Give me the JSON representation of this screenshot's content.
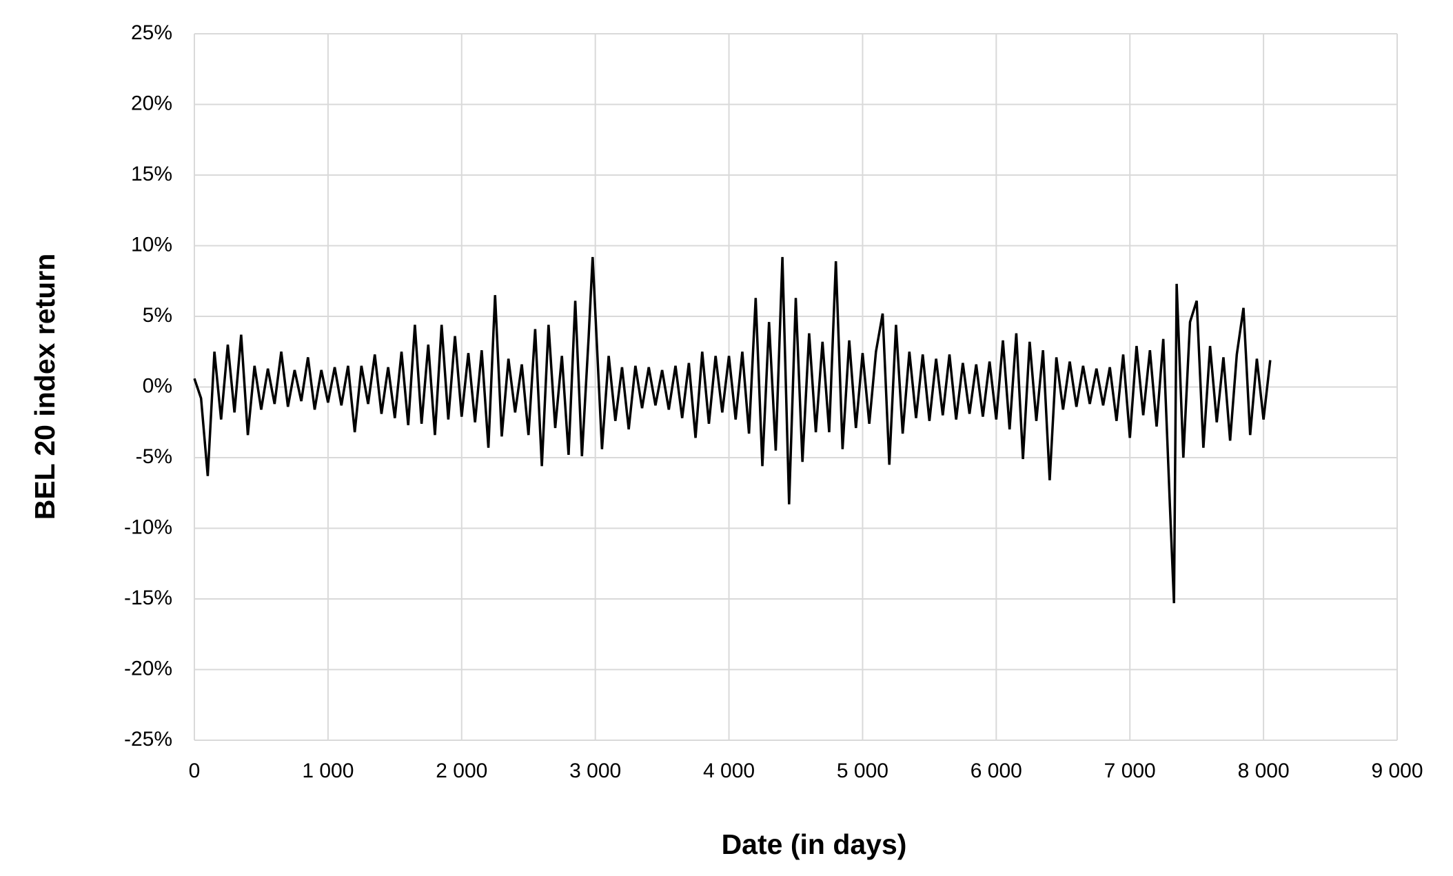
{
  "chart_data": {
    "type": "line",
    "x_label": "Date (in days)",
    "y_label": "BEL 20 index return",
    "xlim": [
      0,
      9000
    ],
    "xticks": [
      0,
      {
        "value": 1000,
        "label": "1 000"
      },
      {
        "value": 2000,
        "label": "2 000"
      },
      {
        "value": 3000,
        "label": "3 000"
      },
      {
        "value": 4000,
        "label": "4 000"
      },
      {
        "value": 5000,
        "label": "5 000"
      },
      {
        "value": 6000,
        "label": "6 000"
      },
      {
        "value": 7000,
        "label": "7 000"
      },
      {
        "value": 8000,
        "label": "8 000"
      },
      {
        "value": 9000,
        "label": "9 000"
      }
    ],
    "ylim": [
      -25,
      25
    ],
    "yticks": [
      {
        "value": -25,
        "label": "-25%"
      },
      {
        "value": -20,
        "label": "-20%"
      },
      {
        "value": -15,
        "label": "-15%"
      },
      {
        "value": -10,
        "label": "-10%"
      },
      {
        "value": -5,
        "label": "-5%"
      },
      {
        "value": 0,
        "label": "0%"
      },
      {
        "value": 5,
        "label": "5%"
      },
      {
        "value": 10,
        "label": "10%"
      },
      {
        "value": 15,
        "label": "15%"
      },
      {
        "value": 20,
        "label": "20%"
      },
      {
        "value": 25,
        "label": "25%"
      }
    ],
    "grid": true,
    "x": [
      0,
      50,
      100,
      150,
      200,
      250,
      300,
      350,
      400,
      450,
      500,
      550,
      600,
      650,
      700,
      750,
      800,
      850,
      900,
      950,
      1000,
      1050,
      1100,
      1150,
      1200,
      1250,
      1300,
      1350,
      1400,
      1450,
      1500,
      1550,
      1600,
      1650,
      1700,
      1750,
      1800,
      1850,
      1900,
      1950,
      2000,
      2050,
      2100,
      2150,
      2200,
      2250,
      2300,
      2350,
      2400,
      2450,
      2500,
      2550,
      2600,
      2650,
      2700,
      2750,
      2800,
      2850,
      2900,
      2950,
      2980,
      3050,
      3100,
      3150,
      3200,
      3250,
      3300,
      3350,
      3400,
      3450,
      3500,
      3550,
      3600,
      3650,
      3700,
      3750,
      3800,
      3850,
      3900,
      3950,
      4000,
      4050,
      4100,
      4150,
      4200,
      4250,
      4300,
      4350,
      4400,
      4450,
      4500,
      4550,
      4600,
      4650,
      4700,
      4750,
      4800,
      4850,
      4900,
      4950,
      5000,
      5050,
      5100,
      5150,
      5200,
      5250,
      5300,
      5350,
      5400,
      5450,
      5500,
      5550,
      5600,
      5650,
      5700,
      5750,
      5800,
      5850,
      5900,
      5950,
      6000,
      6050,
      6100,
      6150,
      6200,
      6250,
      6300,
      6350,
      6400,
      6450,
      6500,
      6550,
      6600,
      6650,
      6700,
      6750,
      6800,
      6850,
      6900,
      6950,
      7000,
      7050,
      7100,
      7150,
      7200,
      7250,
      7300,
      7330,
      7350,
      7400,
      7450,
      7500,
      7550,
      7600,
      7650,
      7700,
      7750,
      7800,
      7850,
      7900,
      7950,
      8000,
      8050
    ],
    "series": [
      {
        "name": "BEL 20 index return",
        "color": "#000000",
        "values": [
          0.6,
          -0.8,
          -6.3,
          2.5,
          -2.3,
          3.0,
          -1.8,
          3.7,
          -3.4,
          1.5,
          -1.6,
          1.3,
          -1.2,
          2.5,
          -1.4,
          1.2,
          -1.0,
          2.1,
          -1.6,
          1.2,
          -1.1,
          1.4,
          -1.3,
          1.5,
          -3.2,
          1.5,
          -1.2,
          2.3,
          -1.9,
          1.4,
          -2.2,
          2.5,
          -2.7,
          4.4,
          -2.6,
          3.0,
          -3.4,
          4.4,
          -2.3,
          3.6,
          -2.1,
          2.4,
          -2.5,
          2.6,
          -4.3,
          6.5,
          -3.5,
          2.0,
          -1.8,
          1.6,
          -3.4,
          4.1,
          -5.6,
          4.4,
          -2.9,
          2.2,
          -4.8,
          6.1,
          -4.9,
          3.5,
          9.2,
          -4.4,
          2.2,
          -2.4,
          1.4,
          -3.0,
          1.5,
          -1.5,
          1.4,
          -1.3,
          1.2,
          -1.6,
          1.5,
          -2.2,
          1.7,
          -3.6,
          2.5,
          -2.6,
          2.2,
          -1.8,
          2.2,
          -2.3,
          2.5,
          -3.3,
          6.3,
          -5.6,
          4.6,
          -4.5,
          9.2,
          -8.3,
          6.3,
          -5.3,
          3.8,
          -3.2,
          3.2,
          -3.2,
          8.9,
          -4.4,
          3.3,
          -2.9,
          2.4,
          -2.6,
          2.5,
          5.2,
          -5.5,
          4.4,
          -3.3,
          2.5,
          -2.2,
          2.3,
          -2.4,
          2.0,
          -2.0,
          2.3,
          -2.3,
          1.7,
          -1.9,
          1.6,
          -2.1,
          1.8,
          -2.3,
          3.3,
          -3.0,
          3.8,
          -5.1,
          3.2,
          -2.4,
          2.6,
          -6.6,
          2.1,
          -1.6,
          1.8,
          -1.4,
          1.5,
          -1.2,
          1.3,
          -1.3,
          1.4,
          -2.4,
          2.3,
          -3.6,
          2.9,
          -2.0,
          2.6,
          -2.8,
          3.4,
          -8.5,
          -15.3,
          7.3,
          -5.0,
          4.6,
          6.1,
          -4.3,
          2.9,
          -2.5,
          2.1,
          -3.8,
          2.3,
          5.6,
          -3.4,
          2.0,
          -2.3,
          1.9
        ]
      }
    ]
  }
}
